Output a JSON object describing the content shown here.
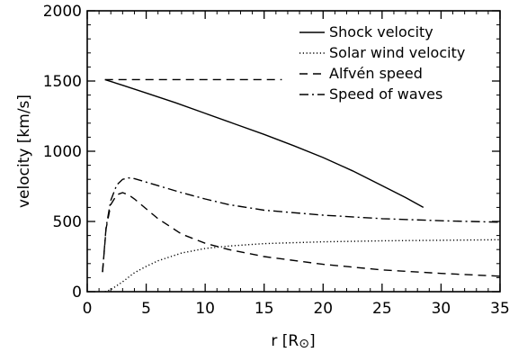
{
  "chart_data": {
    "type": "line",
    "xlabel": "r [R",
    "xlabel_symbol": "⊙",
    "xlabel_suffix": "]",
    "ylabel": "velocity [km/s]",
    "xlim": [
      0,
      35
    ],
    "ylim": [
      0,
      2000
    ],
    "x_ticks": [
      0,
      5,
      10,
      15,
      20,
      25,
      30,
      35
    ],
    "y_ticks": [
      0,
      500,
      1000,
      1500,
      2000
    ],
    "grid": false,
    "legend_position": "top-right",
    "series": [
      {
        "name": "Shock velocity",
        "style": "solid",
        "x": [
          1.5,
          3,
          5,
          7.5,
          10,
          12.5,
          15,
          17.5,
          20,
          22.5,
          25,
          27,
          28.5
        ],
        "y": [
          1510,
          1470,
          1415,
          1345,
          1270,
          1195,
          1120,
          1040,
          955,
          860,
          755,
          670,
          600
        ]
      },
      {
        "name": "Solar wind velocity",
        "style": "dotted",
        "x": [
          1.5,
          2,
          3,
          4,
          5,
          6,
          8,
          10,
          12,
          15,
          20,
          25,
          30,
          35
        ],
        "y": [
          0,
          15,
          70,
          135,
          180,
          220,
          275,
          308,
          325,
          342,
          355,
          362,
          366,
          370
        ]
      },
      {
        "name": "Alfvén speed",
        "style": "dashed",
        "x": [
          1.3,
          1.6,
          2,
          2.5,
          3,
          3.5,
          4,
          5,
          6,
          8,
          10,
          12,
          15,
          20,
          25,
          30,
          35
        ],
        "y": [
          140,
          450,
          620,
          690,
          705,
          690,
          660,
          590,
          520,
          410,
          345,
          300,
          250,
          195,
          155,
          130,
          110
        ]
      },
      {
        "name": "Speed of waves",
        "style": "dashdot",
        "x": [
          1.3,
          1.6,
          2,
          2.5,
          3,
          3.5,
          4,
          5,
          6,
          8,
          10,
          12,
          15,
          20,
          25,
          30,
          35
        ],
        "y": [
          140,
          460,
          650,
          760,
          800,
          810,
          805,
          780,
          755,
          705,
          660,
          620,
          580,
          545,
          520,
          505,
          495
        ]
      },
      {
        "style": "dashed",
        "x": [
          1.5,
          16.5
        ],
        "y": [
          1510,
          1510
        ]
      }
    ]
  }
}
